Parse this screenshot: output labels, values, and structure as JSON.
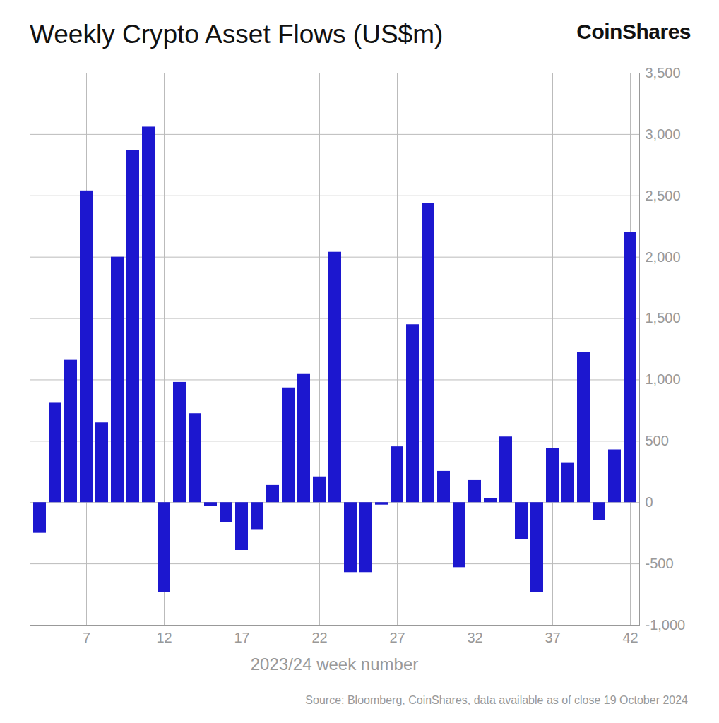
{
  "chart_data": {
    "type": "bar",
    "title": "Weekly Crypto Asset Flows (US$m)",
    "logo": "CoinShares",
    "x_label": "2023/24 week number",
    "source": "Source: Bloomberg, CoinShares, data available as of close 19 October 2024",
    "categories": [
      null,
      null,
      null,
      "7",
      null,
      null,
      null,
      null,
      "12",
      null,
      null,
      null,
      null,
      "17",
      null,
      null,
      null,
      null,
      "22",
      null,
      null,
      null,
      null,
      "27",
      null,
      null,
      null,
      null,
      "32",
      null,
      null,
      null,
      null,
      "37",
      null,
      null,
      null,
      null,
      "42"
    ],
    "values": [
      -250,
      810,
      1160,
      2540,
      650,
      2000,
      2870,
      3060,
      -730,
      980,
      725,
      -30,
      -160,
      -390,
      -220,
      140,
      935,
      1050,
      210,
      2040,
      -570,
      -570,
      -20,
      455,
      1450,
      2440,
      255,
      -530,
      180,
      30,
      535,
      -300,
      -730,
      440,
      320,
      1225,
      -145,
      430,
      2200
    ],
    "color": "#1c17cf",
    "ylim": [
      -1000,
      3500
    ],
    "yticks": [
      {
        "value": -1000,
        "label": "-1,000"
      },
      {
        "value": -500,
        "label": "-500"
      },
      0,
      500,
      {
        "value": 1000,
        "label": "1,000"
      },
      {
        "value": 1500,
        "label": "1,500"
      },
      {
        "value": 2000,
        "label": "2,000"
      },
      {
        "value": 2500,
        "label": "2,500"
      },
      {
        "value": 3000,
        "label": "3,000"
      },
      {
        "value": 3500,
        "label": "3,500"
      }
    ],
    "grid": true
  }
}
